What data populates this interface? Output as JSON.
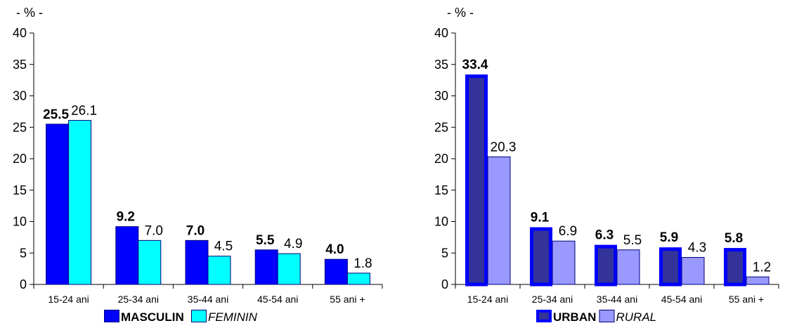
{
  "chart_data": [
    {
      "type": "bar",
      "unit_label": "- % -",
      "categories": [
        "15-24 ani",
        "25-34 ani",
        "35-44 ani",
        "45-54 ani",
        "55 ani +"
      ],
      "ylim": [
        0,
        40
      ],
      "yticks": [
        "0",
        "5",
        "10",
        "15",
        "20",
        "25",
        "30",
        "35",
        "40"
      ],
      "grid": false,
      "legend_position": "bottom",
      "series": [
        {
          "name": "MASCULIN",
          "values": [
            25.5,
            9.2,
            7.0,
            5.5,
            4.0
          ],
          "labels": [
            "25.5",
            "9.2",
            "7.0",
            "5.5",
            "4.0"
          ],
          "color": "#0000ff",
          "stroke": "#000080",
          "style": "bold"
        },
        {
          "name": "FEMININ",
          "values": [
            26.1,
            7.0,
            4.5,
            4.9,
            1.8
          ],
          "labels": [
            "26.1",
            "7.0",
            "4.5",
            "4.9",
            "1.8"
          ],
          "color": "#00ffff",
          "stroke": "#000080",
          "style": "italic"
        }
      ]
    },
    {
      "type": "bar",
      "unit_label": "- % -",
      "categories": [
        "15-24 ani",
        "25-34 ani",
        "35-44 ani",
        "45-54 ani",
        "55 ani +"
      ],
      "ylim": [
        0,
        40
      ],
      "yticks": [
        "0",
        "5",
        "10",
        "15",
        "20",
        "25",
        "30",
        "35",
        "40"
      ],
      "grid": false,
      "legend_position": "bottom",
      "series": [
        {
          "name": "URBAN",
          "values": [
            33.4,
            9.1,
            6.3,
            5.9,
            5.8
          ],
          "labels": [
            "33.4",
            "9.1",
            "6.3",
            "5.9",
            "5.8"
          ],
          "color": "#333399",
          "stroke": "#0000ff",
          "style": "bold"
        },
        {
          "name": "RURAL",
          "values": [
            20.3,
            6.9,
            5.5,
            4.3,
            1.2
          ],
          "labels": [
            "20.3",
            "6.9",
            "5.5",
            "4.3",
            "1.2"
          ],
          "color": "#9999ff",
          "stroke": "#000080",
          "style": "italic"
        }
      ]
    }
  ]
}
